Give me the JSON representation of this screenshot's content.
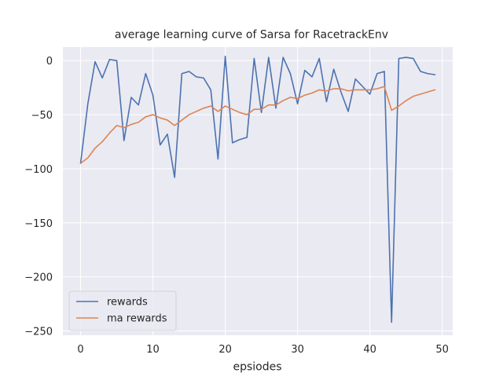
{
  "chart_data": {
    "type": "line",
    "title": "average learning curve of Sarsa for RacetrackEnv",
    "xlabel": "epsiodes",
    "ylabel": "",
    "xlim": [
      -2.45,
      51.45
    ],
    "ylim": [
      -254,
      12.5
    ],
    "xticks": [
      0,
      10,
      20,
      30,
      40,
      50
    ],
    "xtick_labels": [
      "0",
      "10",
      "20",
      "30",
      "40",
      "50"
    ],
    "yticks": [
      0,
      -50,
      -100,
      -150,
      -200,
      -250
    ],
    "ytick_labels": [
      "0",
      "−50",
      "−100",
      "−150",
      "−200",
      "−250"
    ],
    "grid": true,
    "legend_position": "lower-left",
    "background_color": "#eaeaf2",
    "grid_color": "#ffffff",
    "series": [
      {
        "name": "rewards",
        "color": "#4c72b0",
        "x": [
          0,
          1,
          2,
          3,
          4,
          5,
          6,
          7,
          8,
          9,
          10,
          11,
          12,
          13,
          14,
          15,
          16,
          17,
          18,
          19,
          20,
          21,
          22,
          23,
          24,
          25,
          26,
          27,
          28,
          29,
          30,
          31,
          32,
          33,
          34,
          35,
          36,
          37,
          38,
          39,
          40,
          41,
          42,
          43,
          44,
          45,
          46,
          47,
          48,
          49
        ],
        "values": [
          -95,
          -40,
          -1,
          -16,
          1,
          0,
          -74,
          -34,
          -41,
          -12,
          -32,
          -78,
          -68,
          -108,
          -12,
          -10,
          -15,
          -16,
          -27,
          -91,
          4,
          -76,
          -73,
          -71,
          2,
          -48,
          3,
          -44,
          3,
          -12,
          -40,
          -9,
          -15,
          2,
          -38,
          -8,
          -29,
          -47,
          -17,
          -24,
          -31,
          -12,
          -10,
          -242,
          2,
          3,
          2,
          -10,
          -12,
          -13
        ]
      },
      {
        "name": "ma rewards",
        "color": "#dd8452",
        "x": [
          0,
          1,
          2,
          3,
          4,
          5,
          6,
          7,
          8,
          9,
          10,
          11,
          12,
          13,
          14,
          15,
          16,
          17,
          18,
          19,
          20,
          21,
          22,
          23,
          24,
          25,
          26,
          27,
          28,
          29,
          30,
          31,
          32,
          33,
          34,
          35,
          36,
          37,
          38,
          39,
          40,
          41,
          42,
          43,
          44,
          45,
          46,
          47,
          48,
          49
        ],
        "values": [
          -95,
          -90,
          -81,
          -75,
          -67,
          -60,
          -62,
          -59,
          -57,
          -52,
          -50,
          -53,
          -55,
          -60,
          -55,
          -50,
          -47,
          -44,
          -42,
          -47,
          -42,
          -45,
          -48,
          -50,
          -45,
          -45,
          -41,
          -41,
          -37,
          -34,
          -35,
          -32,
          -30,
          -27,
          -28,
          -26,
          -26,
          -28,
          -27,
          -27,
          -27,
          -26,
          -24,
          -46,
          -42,
          -37,
          -33,
          -31,
          -29,
          -27
        ]
      }
    ]
  }
}
